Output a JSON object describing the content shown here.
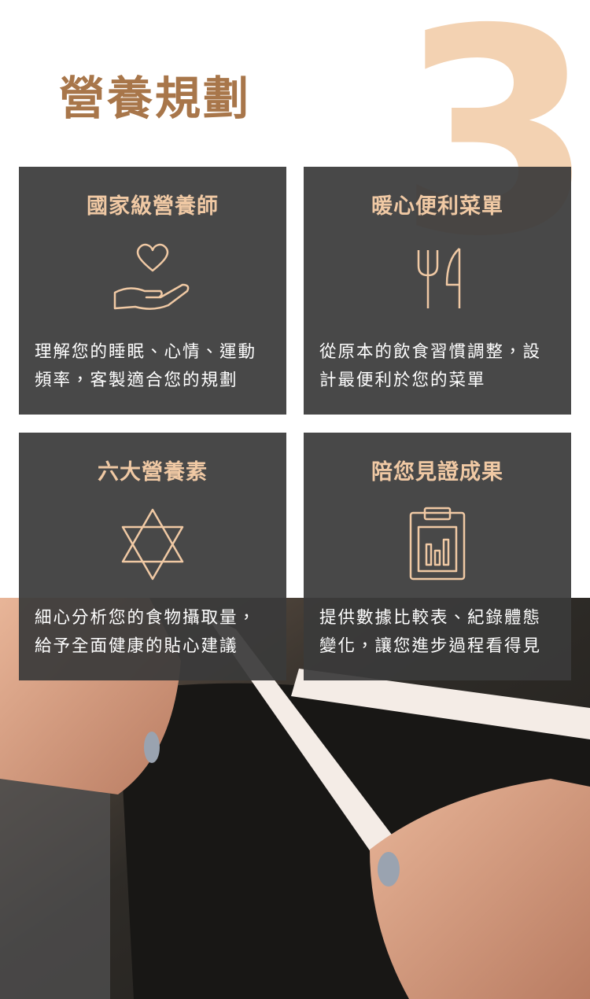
{
  "header": {
    "title": "營養規劃",
    "number": "3"
  },
  "cards": [
    {
      "title": "國家級營養師",
      "description": "理解您的睡眠、心情、運動頻率，客製適合您的規劃"
    },
    {
      "title": "暖心便利菜單",
      "description": "從原本的飲食習慣調整，設計最便利於您的菜單"
    },
    {
      "title": "六大營養素",
      "description": "細心分析您的食物攝取量，給予全面健康的貼心建議"
    },
    {
      "title": "陪您見證成果",
      "description": "提供數據比較表、紀錄體態變化，讓您進步過程看得見"
    }
  ]
}
